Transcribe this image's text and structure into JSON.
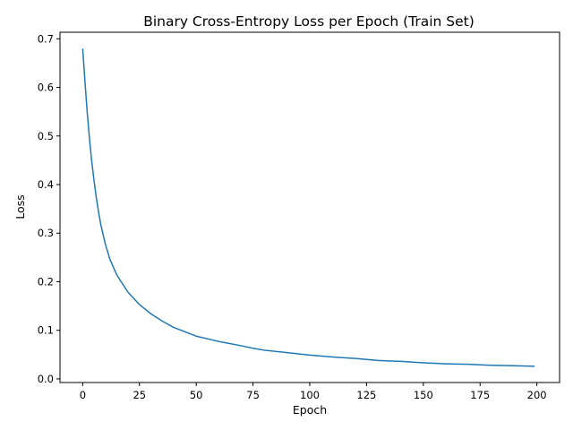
{
  "chart_data": {
    "type": "line",
    "title": "Binary Cross-Entropy Loss per Epoch (Train Set)",
    "xlabel": "Epoch",
    "ylabel": "Loss",
    "xlim": [
      -10,
      210
    ],
    "ylim": [
      -0.0075,
      0.7135
    ],
    "x_ticks": [
      0,
      25,
      50,
      75,
      100,
      125,
      150,
      175,
      200
    ],
    "y_ticks": [
      0.0,
      0.1,
      0.2,
      0.3,
      0.4,
      0.5,
      0.6,
      0.7
    ],
    "grid": false,
    "legend": "none",
    "series": [
      {
        "color": "#1f77b4",
        "x": [
          0,
          1,
          2,
          3,
          4,
          5,
          6,
          7,
          8,
          10,
          12,
          15,
          20,
          25,
          30,
          35,
          40,
          50,
          60,
          70,
          75,
          80,
          90,
          100,
          110,
          120,
          125,
          130,
          140,
          150,
          160,
          170,
          175,
          180,
          190,
          199
        ],
        "y": [
          0.68,
          0.612,
          0.548,
          0.494,
          0.447,
          0.408,
          0.373,
          0.343,
          0.317,
          0.277,
          0.246,
          0.214,
          0.178,
          0.153,
          0.134,
          0.119,
          0.106,
          0.088,
          0.077,
          0.068,
          0.063,
          0.059,
          0.054,
          0.049,
          0.045,
          0.042,
          0.04,
          0.038,
          0.036,
          0.033,
          0.031,
          0.03,
          0.029,
          0.028,
          0.027,
          0.026
        ]
      }
    ]
  }
}
